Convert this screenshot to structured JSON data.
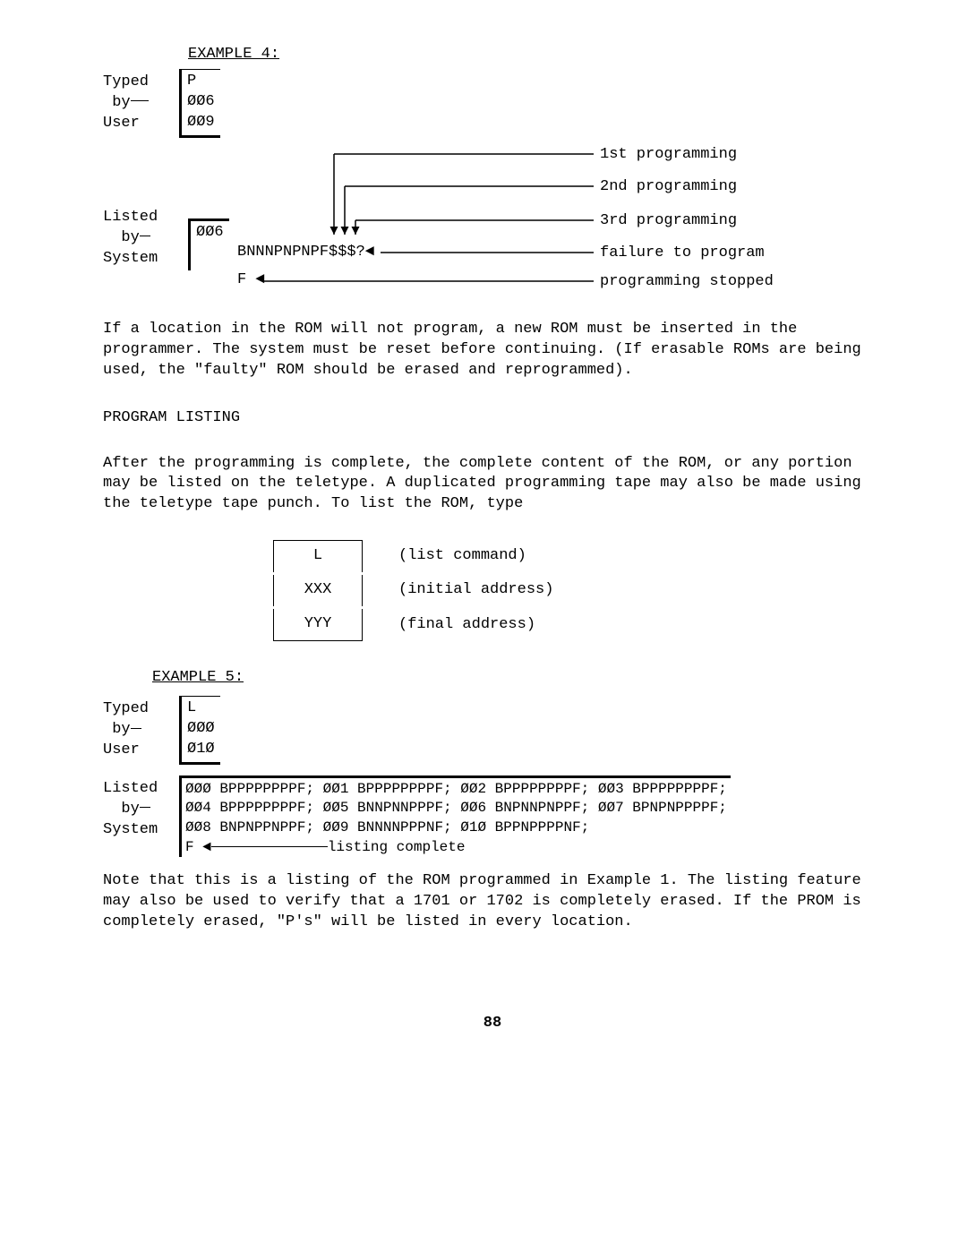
{
  "example4": {
    "title": "EXAMPLE 4:",
    "typed_label_l1": "Typed",
    "typed_label_l2": "by",
    "typed_label_l3": "User",
    "typed_l1": "P",
    "typed_l2": "ØØ6",
    "typed_l3": "ØØ9",
    "listed_label_l1": "Listed",
    "listed_label_l2": "by",
    "listed_label_l3": "System",
    "listed_addr": "ØØ6",
    "listed_data": "BNNNPNPNPF$$$?",
    "listed_f": "F",
    "arrow_labels": {
      "first": "1st programming",
      "second": "2nd programming",
      "third": "3rd programming",
      "failure": "failure to program",
      "stopped": "programming stopped"
    }
  },
  "para1": "If a location in the ROM will not program, a new ROM must be inserted in the programmer.  The system must be reset before continuing.  (If erasable ROMs are being used, the \"faulty\" ROM should be erased and reprogrammed).",
  "heading_program_listing": "PROGRAM LISTING",
  "para2": "After the programming is complete, the complete content of the ROM, or any portion may be listed on the teletype.  A duplicated programming tape may also be made using the teletype tape punch.  To list the ROM, type",
  "list_cmd": {
    "row1_box": "L",
    "row1_label": "(list command)",
    "row2_box": "XXX",
    "row2_label": "(initial address)",
    "row3_box": "YYY",
    "row3_label": "(final address)"
  },
  "example5": {
    "title": "EXAMPLE 5:",
    "typed_label_l1": "Typed",
    "typed_label_l2": "by",
    "typed_label_l3": "User",
    "typed_l1": "L",
    "typed_l2": "ØØØ",
    "typed_l3": "Ø1Ø",
    "listed_label_l1": "Listed",
    "listed_label_l2": "by",
    "listed_label_l3": "System",
    "listing_rows": [
      [
        {
          "a": "ØØØ",
          "d": "BPPPPPPPPF;"
        },
        {
          "a": "ØØ1",
          "d": "BPPPPPPPPF;"
        },
        {
          "a": "ØØ2",
          "d": "BPPPPPPPPF;"
        },
        {
          "a": "ØØ3",
          "d": "BPPPPPPPPF;"
        }
      ],
      [
        {
          "a": "ØØ4",
          "d": "BPPPPPPPPF;"
        },
        {
          "a": "ØØ5",
          "d": "BNNPNNPPPF;"
        },
        {
          "a": "ØØ6",
          "d": "BNPNNPNPPF;"
        },
        {
          "a": "ØØ7",
          "d": "BPNPNPPPPF;"
        }
      ],
      [
        {
          "a": "ØØ8",
          "d": "BNPNPPNPPF;"
        },
        {
          "a": "ØØ9",
          "d": "BNNNNPPPNF;"
        },
        {
          "a": "Ø1Ø",
          "d": "BPPNPPPPNF;"
        }
      ]
    ],
    "listing_final": "F",
    "listing_complete": "listing complete"
  },
  "para3": "Note that this is a listing of the ROM programmed in Example 1.  The listing feature may also be used to verify that a 1701 or 1702 is completely erased.  If the PROM is completely erased, \"P's\" will be listed in every location.",
  "page_number": "88"
}
